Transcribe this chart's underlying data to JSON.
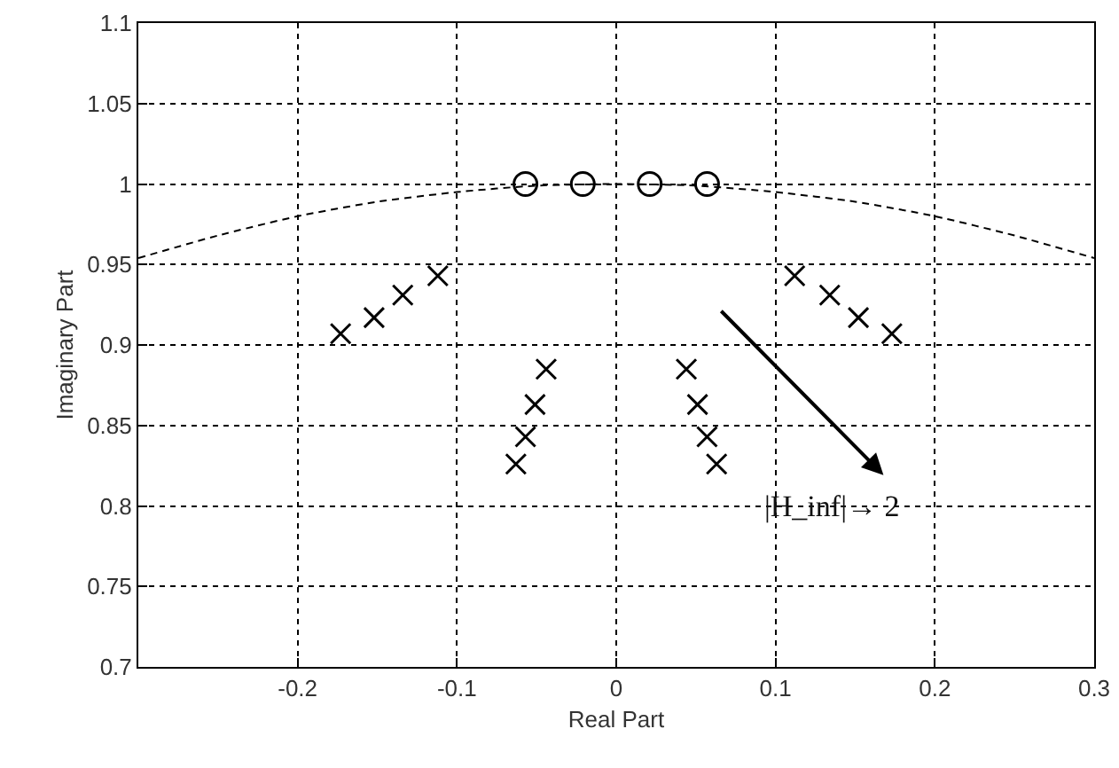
{
  "chart_data": {
    "type": "scatter",
    "xlabel": "Real Part",
    "ylabel": "Imaginary Part",
    "series": [
      {
        "color": "#000000",
        "marker": "cross",
        "x": [
          -0.173,
          -0.152,
          -0.134,
          -0.112,
          -0.063,
          -0.057,
          -0.051,
          -0.044,
          0.044,
          0.051,
          0.057,
          0.063,
          0.112,
          0.134,
          0.152,
          0.173
        ],
        "values": [
          0.907,
          0.917,
          0.931,
          0.943,
          0.826,
          0.843,
          0.863,
          0.885,
          0.885,
          0.863,
          0.843,
          0.826,
          0.943,
          0.931,
          0.917,
          0.907
        ]
      },
      {
        "color": "#000000",
        "marker": "circle",
        "x": [
          -0.057,
          -0.021,
          0.021,
          0.057
        ],
        "values": [
          1,
          1,
          1,
          1
        ]
      },
      {
        "type": "line",
        "color": "#000000",
        "marker": "none",
        "line_style": "dashed",
        "x": [
          -0.3,
          -0.25,
          -0.2,
          -0.15,
          -0.1,
          -0.05,
          0,
          0.05,
          0.1,
          0.15,
          0.2,
          0.25,
          0.3
        ],
        "values": [
          0.954,
          0.968,
          0.98,
          0.989,
          0.995,
          0.999,
          1,
          0.999,
          0.995,
          0.989,
          0.98,
          0.968,
          0.954
        ]
      }
    ],
    "annotations": [
      "|H_inf|→ 2"
    ],
    "xlim": [
      -0.3,
      0.3
    ],
    "xticks": [
      -0.2,
      -0.1,
      0,
      0.1,
      0.2,
      0.3
    ],
    "ylim": [
      0.7,
      1.1
    ],
    "yticks": [
      0.7,
      0.75,
      0.8,
      0.85,
      0.9,
      0.95,
      1,
      1.05,
      1.1
    ],
    "grid": true
  }
}
